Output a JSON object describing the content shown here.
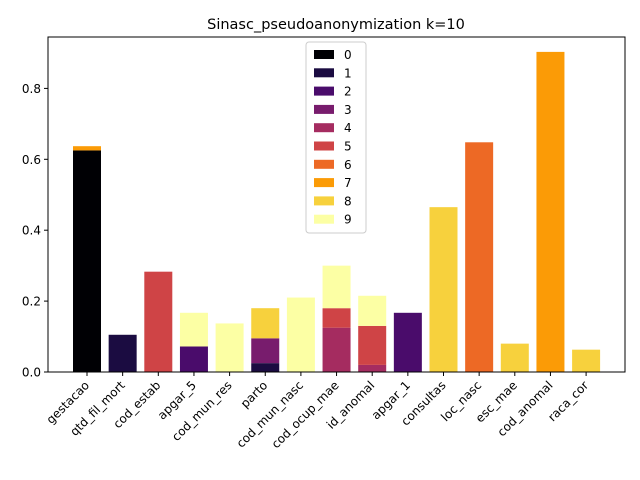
{
  "chart_data": {
    "type": "bar",
    "stacked": true,
    "title": "Sinasc_pseudoanonymization k=10",
    "xlabel": "",
    "ylabel": "",
    "ylim": [
      0,
      0.945
    ],
    "yticks": [
      "0.0",
      "0.2",
      "0.4",
      "0.6",
      "0.8"
    ],
    "yticks_values": [
      0,
      0.2,
      0.4,
      0.6,
      0.8
    ],
    "grid": false,
    "legend_position": "top-center",
    "categories": [
      "gestacao",
      "qtd_fil_mort",
      "cod_estab",
      "apgar_5",
      "cod_mun_res",
      "parto",
      "cod_mun_nasc",
      "cod_ocup_mae",
      "id_anomal",
      "apgar_1",
      "consultas",
      "loc_nasc",
      "esc_mae",
      "cod_anomal",
      "raca_cor"
    ],
    "series": [
      {
        "name": "0",
        "color": "#000004",
        "values": [
          0.625,
          0,
          0,
          0,
          0,
          0,
          0,
          0,
          0,
          0,
          0,
          0,
          0,
          0,
          0
        ]
      },
      {
        "name": "1",
        "color": "#1b0c41",
        "values": [
          0,
          0.105,
          0,
          0,
          0,
          0.025,
          0,
          0,
          0,
          0,
          0,
          0,
          0,
          0,
          0
        ]
      },
      {
        "name": "2",
        "color": "#4a0c6b",
        "values": [
          0,
          0,
          0,
          0.072,
          0,
          0,
          0,
          0,
          0,
          0.167,
          0,
          0,
          0,
          0,
          0
        ]
      },
      {
        "name": "3",
        "color": "#781c6d",
        "values": [
          0,
          0,
          0,
          0,
          0,
          0.07,
          0,
          0,
          0,
          0,
          0,
          0,
          0,
          0,
          0
        ]
      },
      {
        "name": "4",
        "color": "#a52c60",
        "values": [
          0,
          0,
          0,
          0,
          0,
          0,
          0,
          0.125,
          0.02,
          0,
          0,
          0,
          0,
          0,
          0
        ]
      },
      {
        "name": "5",
        "color": "#cf4446",
        "values": [
          0,
          0,
          0.283,
          0,
          0,
          0,
          0,
          0.055,
          0.11,
          0,
          0,
          0,
          0,
          0,
          0
        ]
      },
      {
        "name": "6",
        "color": "#ed6925",
        "values": [
          0,
          0,
          0,
          0,
          0,
          0,
          0,
          0,
          0,
          0,
          0,
          0.648,
          0,
          0,
          0
        ]
      },
      {
        "name": "7",
        "color": "#fb9b06",
        "values": [
          0.012,
          0,
          0,
          0,
          0,
          0,
          0,
          0,
          0,
          0,
          0,
          0,
          0,
          0.903,
          0
        ]
      },
      {
        "name": "8",
        "color": "#f7d13d",
        "values": [
          0,
          0,
          0,
          0,
          0,
          0.085,
          0,
          0,
          0,
          0,
          0.465,
          0,
          0.08,
          0,
          0.063
        ]
      },
      {
        "name": "9",
        "color": "#fcffa4",
        "values": [
          0,
          0,
          0,
          0.095,
          0.137,
          0,
          0.21,
          0.12,
          0.085,
          0,
          0,
          0,
          0,
          0,
          0
        ]
      }
    ]
  }
}
